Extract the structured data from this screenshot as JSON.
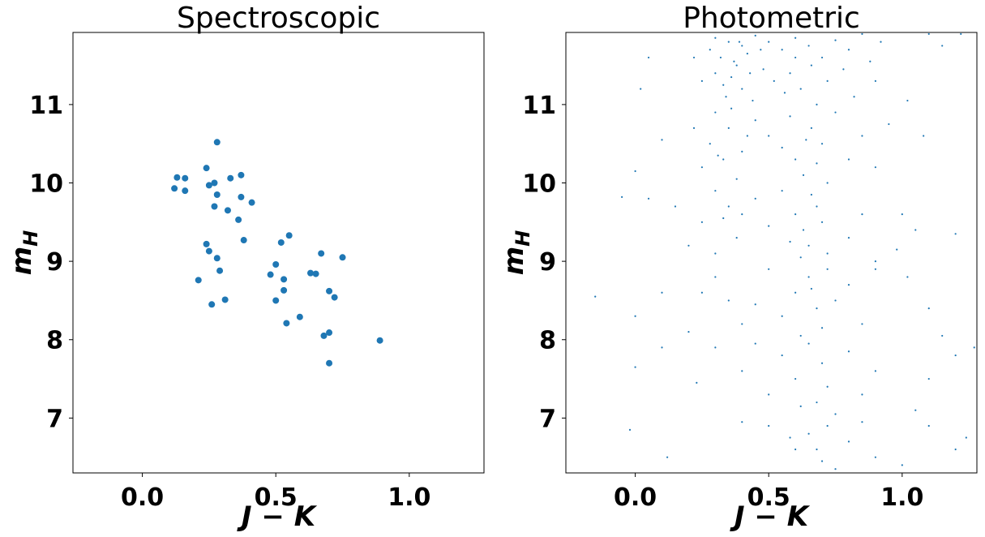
{
  "chart_data": [
    {
      "type": "scatter",
      "title": "Spectroscopic",
      "x_label": "J − K",
      "y_label": [
        "m",
        "H"
      ],
      "color": "#1f77b4",
      "x": [
        0.13,
        0.16,
        0.12,
        0.16,
        0.28,
        0.24,
        0.25,
        0.27,
        0.33,
        0.37,
        0.28,
        0.37,
        0.41,
        0.27,
        0.32,
        0.36,
        0.38,
        0.24,
        0.25,
        0.28,
        0.29,
        0.21,
        0.26,
        0.31,
        0.55,
        0.52,
        0.5,
        0.48,
        0.53,
        0.53,
        0.5,
        0.54,
        0.59,
        0.63,
        0.65,
        0.67,
        0.75,
        0.7,
        0.72,
        0.68,
        0.7,
        0.7,
        0.89
      ],
      "values": [
        10.07,
        10.06,
        9.93,
        9.9,
        10.52,
        10.19,
        9.97,
        10.0,
        10.06,
        10.1,
        9.85,
        9.82,
        9.75,
        9.7,
        9.65,
        9.53,
        9.27,
        9.22,
        9.13,
        9.04,
        8.88,
        8.76,
        8.45,
        8.51,
        9.33,
        9.24,
        8.96,
        8.83,
        8.77,
        8.63,
        8.5,
        8.21,
        8.29,
        8.85,
        8.84,
        9.1,
        9.05,
        8.62,
        8.54,
        8.05,
        8.09,
        7.7,
        7.99
      ],
      "xlim": [
        -0.26,
        1.28
      ],
      "ylim": [
        6.3,
        11.92
      ],
      "xticks": [
        {
          "value": 0,
          "label": "0.0"
        },
        {
          "value": 0.5,
          "label": "0.5"
        },
        {
          "value": 1,
          "label": "1.0"
        }
      ],
      "yticks": [
        7,
        8,
        9,
        10,
        11
      ]
    },
    {
      "type": "scatter",
      "title": "Photometric",
      "x_label": "J − K",
      "y_label": [
        "m",
        "H"
      ],
      "color": "#1f77b4",
      "x": [
        0.3,
        0.35,
        0.4,
        0.32,
        0.38,
        0.42,
        0.28,
        0.45,
        0.5,
        0.55,
        0.6,
        0.65,
        0.7,
        0.75,
        0.8,
        0.85,
        0.88,
        0.36,
        0.4,
        0.34,
        0.3,
        0.25,
        0.22,
        0.48,
        0.52,
        0.58,
        0.62,
        0.66,
        0.72,
        0.78,
        0.82,
        0.9,
        0.44,
        0.56,
        0.68,
        0.37,
        0.33,
        0.6,
        0.47,
        0.92,
        1.1,
        1.15,
        1.22,
        0.05,
        0.02,
        1.02,
        0.43,
        0.39,
        0.3,
        0.35,
        0.28,
        0.4,
        0.33,
        0.45,
        0.5,
        0.55,
        0.6,
        0.63,
        0.66,
        0.7,
        0.75,
        0.8,
        0.85,
        0.9,
        0.25,
        0.22,
        0.38,
        0.42,
        0.58,
        0.68,
        0.72,
        0.95,
        1.08,
        0.1,
        0.0,
        0.31,
        0.36,
        0.64,
        0.3,
        0.35,
        0.4,
        0.25,
        0.45,
        0.55,
        0.6,
        0.63,
        0.65,
        0.68,
        0.7,
        0.72,
        0.62,
        0.66,
        0.8,
        0.85,
        0.9,
        0.2,
        0.3,
        0.38,
        0.5,
        0.15,
        0.05,
        -0.05,
        1.0,
        1.05,
        1.2,
        0.98,
        0.33,
        0.58,
        0.3,
        0.35,
        0.4,
        0.25,
        0.5,
        0.55,
        0.6,
        0.65,
        0.68,
        0.7,
        0.72,
        0.75,
        0.8,
        0.85,
        0.9,
        0.2,
        0.1,
        0.0,
        -0.15,
        1.02,
        1.1,
        1.15,
        0.62,
        0.66,
        0.45,
        0.3,
        0.4,
        0.5,
        0.55,
        0.6,
        0.65,
        0.68,
        0.7,
        0.72,
        0.75,
        0.8,
        0.85,
        0.9,
        0.23,
        0.1,
        0.0,
        1.05,
        1.1,
        1.2,
        1.27,
        0.62,
        0.45,
        0.5,
        0.6,
        0.65,
        0.7,
        0.72,
        0.75,
        0.8,
        0.85,
        0.9,
        1.0,
        1.1,
        1.2,
        1.24,
        -0.02,
        0.12,
        0.4,
        0.58,
        0.68
      ],
      "values": [
        11.85,
        11.8,
        11.75,
        11.6,
        11.5,
        11.65,
        11.7,
        11.88,
        11.8,
        11.7,
        11.85,
        11.75,
        11.6,
        11.82,
        11.7,
        11.9,
        11.55,
        11.35,
        11.2,
        11.1,
        11.4,
        11.3,
        11.6,
        11.45,
        11.3,
        11.4,
        11.2,
        11.5,
        11.3,
        11.45,
        11.1,
        11.3,
        11.05,
        11.15,
        11.0,
        11.55,
        11.25,
        11.6,
        11.7,
        11.8,
        11.9,
        11.75,
        11.9,
        11.6,
        11.2,
        11.05,
        11.4,
        11.8,
        10.9,
        10.7,
        10.5,
        10.4,
        10.3,
        10.8,
        10.6,
        10.45,
        10.3,
        10.1,
        10.7,
        10.5,
        10.9,
        10.3,
        10.6,
        10.2,
        10.2,
        10.7,
        10.05,
        10.6,
        10.85,
        10.25,
        10.0,
        10.75,
        10.6,
        10.55,
        10.15,
        10.35,
        10.95,
        10.55,
        9.9,
        9.7,
        9.6,
        9.5,
        9.8,
        9.9,
        9.6,
        9.4,
        9.2,
        9.7,
        9.5,
        9.1,
        9.05,
        9.85,
        9.3,
        9.6,
        9.0,
        9.2,
        9.1,
        9.3,
        9.45,
        9.7,
        9.8,
        9.82,
        9.6,
        9.4,
        9.35,
        9.15,
        9.55,
        9.25,
        8.8,
        8.5,
        8.2,
        8.6,
        8.9,
        8.3,
        8.6,
        8.8,
        8.4,
        8.15,
        8.9,
        8.5,
        8.7,
        8.2,
        8.9,
        8.1,
        8.6,
        8.3,
        8.55,
        8.8,
        8.4,
        8.05,
        8.05,
        8.65,
        8.45,
        7.9,
        7.6,
        7.3,
        7.8,
        7.5,
        7.95,
        7.2,
        7.7,
        7.4,
        7.05,
        7.85,
        7.3,
        7.6,
        7.45,
        7.9,
        7.65,
        7.1,
        7.5,
        7.8,
        7.9,
        7.15,
        7.95,
        6.9,
        6.6,
        6.8,
        6.45,
        6.9,
        6.35,
        6.7,
        6.95,
        6.5,
        6.4,
        6.9,
        6.6,
        6.75,
        6.85,
        6.5,
        6.95,
        6.75,
        6.6
      ],
      "xlim": [
        -0.26,
        1.28
      ],
      "ylim": [
        6.3,
        11.92
      ],
      "xticks": [
        {
          "value": 0,
          "label": "0.0"
        },
        {
          "value": 0.5,
          "label": "0.5"
        },
        {
          "value": 1,
          "label": "1.0"
        }
      ],
      "yticks": [
        7,
        8,
        9,
        10,
        11
      ]
    }
  ]
}
